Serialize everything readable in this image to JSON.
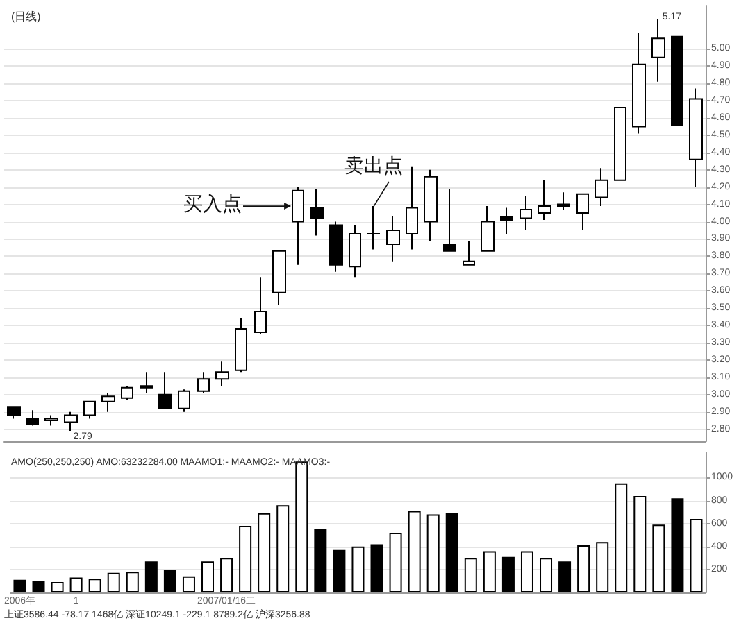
{
  "chart_data": [
    {
      "type": "candlestick",
      "title": "(日线)",
      "color": "#000000",
      "categories": [
        null,
        null,
        null,
        null,
        null,
        null,
        null,
        null,
        null,
        null,
        null,
        null,
        null,
        null,
        null,
        null,
        null,
        null,
        null,
        null,
        null,
        null,
        null,
        null,
        null,
        null,
        null,
        null,
        null,
        null,
        null,
        null,
        null,
        null,
        null,
        null,
        null
      ],
      "ohlc": [
        [
          2.93,
          2.93,
          2.86,
          2.88
        ],
        [
          2.86,
          2.91,
          2.82,
          2.83
        ],
        [
          2.85,
          2.88,
          2.82,
          2.86
        ],
        [
          2.84,
          2.9,
          2.79,
          2.88
        ],
        [
          2.88,
          2.96,
          2.86,
          2.96
        ],
        [
          2.96,
          3.01,
          2.9,
          2.99
        ],
        [
          2.98,
          3.05,
          2.97,
          3.04
        ],
        [
          3.05,
          3.13,
          3.01,
          3.04
        ],
        [
          3.0,
          3.13,
          2.92,
          2.92
        ],
        [
          2.92,
          3.03,
          2.9,
          3.02
        ],
        [
          3.02,
          3.13,
          3.01,
          3.09
        ],
        [
          3.09,
          3.19,
          3.05,
          3.13
        ],
        [
          3.14,
          3.44,
          3.13,
          3.38
        ],
        [
          3.36,
          3.68,
          3.35,
          3.48
        ],
        [
          3.59,
          3.83,
          3.52,
          3.83
        ],
        [
          4.0,
          4.2,
          3.75,
          4.18
        ],
        [
          4.08,
          4.19,
          3.92,
          4.02
        ],
        [
          3.98,
          4.0,
          3.71,
          3.75
        ],
        [
          3.74,
          3.98,
          3.68,
          3.93
        ],
        [
          3.93,
          4.09,
          3.84,
          3.93
        ],
        [
          3.87,
          4.03,
          3.77,
          3.95
        ],
        [
          3.93,
          4.32,
          3.84,
          4.08
        ],
        [
          4.0,
          4.3,
          3.89,
          4.26
        ],
        [
          3.87,
          4.19,
          3.83,
          3.83
        ],
        [
          3.75,
          3.89,
          3.75,
          3.77
        ],
        [
          3.83,
          4.09,
          3.83,
          4.0
        ],
        [
          4.03,
          4.08,
          3.93,
          4.01
        ],
        [
          4.02,
          4.15,
          3.95,
          4.07
        ],
        [
          4.05,
          4.24,
          4.01,
          4.09
        ],
        [
          4.09,
          4.17,
          4.07,
          4.1
        ],
        [
          4.05,
          4.16,
          3.95,
          4.16
        ],
        [
          4.14,
          4.31,
          4.09,
          4.24
        ],
        [
          4.24,
          4.66,
          4.24,
          4.66
        ],
        [
          4.55,
          5.09,
          4.51,
          4.91
        ],
        [
          4.95,
          5.17,
          4.81,
          5.06
        ],
        [
          5.07,
          5.07,
          4.56,
          4.56
        ],
        [
          4.36,
          4.77,
          4.2,
          4.71
        ]
      ],
      "ylim": [
        2.73,
        5.25
      ],
      "yticks": [
        {
          "value": 2.8,
          "label": "2.80"
        },
        {
          "value": 2.9,
          "label": "2.90"
        },
        {
          "value": 3.0,
          "label": "3.00"
        },
        {
          "value": 3.1,
          "label": "3.10"
        },
        {
          "value": 3.2,
          "label": "3.20"
        },
        {
          "value": 3.3,
          "label": "3.30"
        },
        {
          "value": 3.4,
          "label": "3.40"
        },
        {
          "value": 3.5,
          "label": "3.50"
        },
        {
          "value": 3.6,
          "label": "3.60"
        },
        {
          "value": 3.7,
          "label": "3.70"
        },
        {
          "value": 3.8,
          "label": "3.80"
        },
        {
          "value": 3.9,
          "label": "3.90"
        },
        {
          "value": 4.0,
          "label": "4.00"
        },
        {
          "value": 4.1,
          "label": "4.10"
        },
        {
          "value": 4.2,
          "label": "4.20"
        },
        {
          "value": 4.3,
          "label": "4.30"
        },
        {
          "value": 4.4,
          "label": "4.40"
        },
        {
          "value": 4.5,
          "label": "4.50"
        },
        {
          "value": 4.6,
          "label": "4.60"
        },
        {
          "value": 4.7,
          "label": "4.70"
        },
        {
          "value": 4.8,
          "label": "4.80"
        },
        {
          "value": 4.9,
          "label": "4.90"
        },
        {
          "value": 5.0,
          "label": "5.00"
        }
      ],
      "grid": "y",
      "tick_labels": "y",
      "annotations": [
        "买入点",
        "卖出点",
        "2.79",
        "5.17"
      ]
    },
    {
      "type": "bar",
      "title": "AMO(250,250,250) AMO:63232284.00 MAAMO1:- MAAMO2:- MAAMO3:-",
      "color": "#000000",
      "categories": [
        "2006年",
        null,
        null,
        "1",
        null,
        null,
        null,
        null,
        null,
        null,
        null,
        "2007/01/16二",
        null,
        null,
        null,
        null,
        null,
        null,
        null,
        null,
        null,
        null,
        null,
        null,
        null,
        null,
        null,
        null,
        null,
        null,
        null,
        null,
        null,
        null,
        null,
        null,
        null
      ],
      "values": [
        110,
        100,
        90,
        130,
        120,
        170,
        180,
        270,
        200,
        140,
        270,
        300,
        580,
        690,
        760,
        1140,
        550,
        370,
        400,
        420,
        520,
        710,
        680,
        690,
        300,
        360,
        310,
        360,
        300,
        270,
        410,
        440,
        950,
        840,
        590,
        820,
        640
      ],
      "colors": [
        "#000000",
        "#000000",
        "#ffffff",
        "#ffffff",
        "#ffffff",
        "#ffffff",
        "#ffffff",
        "#000000",
        "#000000",
        "#ffffff",
        "#ffffff",
        "#ffffff",
        "#ffffff",
        "#ffffff",
        "#ffffff",
        "#ffffff",
        "#000000",
        "#000000",
        "#ffffff",
        "#000000",
        "#ffffff",
        "#ffffff",
        "#ffffff",
        "#000000",
        "#ffffff",
        "#ffffff",
        "#000000",
        "#ffffff",
        "#ffffff",
        "#000000",
        "#ffffff",
        "#ffffff",
        "#ffffff",
        "#ffffff",
        "#ffffff",
        "#000000",
        "#ffffff"
      ],
      "ylim": [
        0,
        1220
      ],
      "yticks": [
        200,
        400,
        600,
        800,
        1000
      ],
      "grid": "y",
      "annotations": [
        "上证3586.44 -78.17 1468亿 深证10249.1 -229.1 8789.2亿 沪深3256.88"
      ]
    }
  ]
}
